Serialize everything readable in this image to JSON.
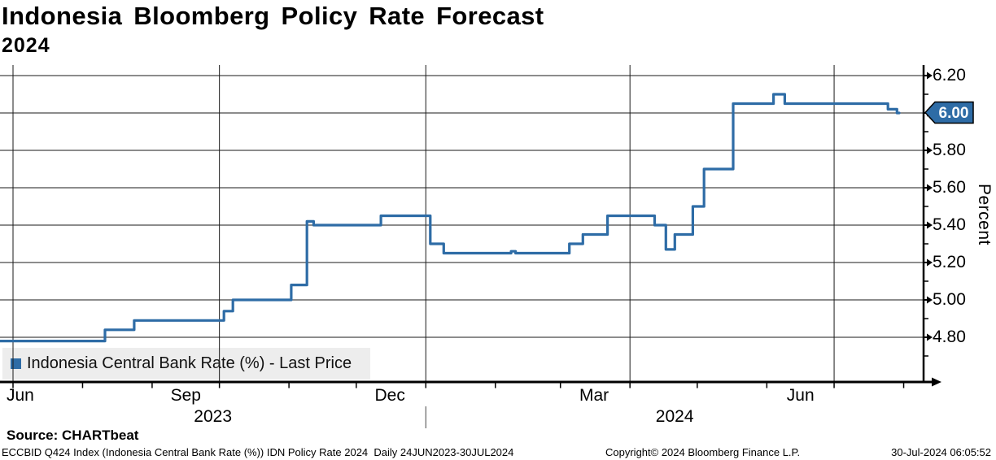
{
  "header": {
    "title": "Indonesia Bloomberg Policy Rate Forecast",
    "subtitle": "2024"
  },
  "legend": {
    "label": "Indonesia Central Bank Rate (%) - Last Price"
  },
  "source": {
    "label": "Source: CHARTbeat"
  },
  "footer": {
    "left": "ECCBID Q424 Index (Indonesia Central Bank Rate (%)) IDN Policy Rate 2024  Daily 24JUN2023-30JUL2024",
    "center": "Copyright© 2024 Bloomberg Finance L.P.",
    "right": "30-Jul-2024 06:05:52"
  },
  "last_price_tag": {
    "value": "6.00"
  },
  "axis": {
    "ylabel": "Percent",
    "yticks": [
      {
        "label": "6.20",
        "value": 6.2
      },
      {
        "label": "6.00",
        "value": 6.0,
        "tagged": true
      },
      {
        "label": "5.80",
        "value": 5.8
      },
      {
        "label": "5.60",
        "value": 5.6
      },
      {
        "label": "5.40",
        "value": 5.4
      },
      {
        "label": "5.20",
        "value": 5.2
      },
      {
        "label": "5.00",
        "value": 5.0
      },
      {
        "label": "4.80",
        "value": 4.8
      }
    ],
    "xticks": [
      {
        "label": "Jun",
        "center_date": "2023-06-16"
      },
      {
        "label": "Sep",
        "center_date": "2023-09-16"
      },
      {
        "label": "Dec",
        "center_date": "2023-12-16"
      },
      {
        "label": "Mar",
        "center_date": "2024-03-16"
      },
      {
        "label": "Jun",
        "center_date": "2024-06-16"
      }
    ],
    "years": [
      {
        "label": "2023"
      },
      {
        "label": "2024"
      }
    ]
  },
  "colors": {
    "line": "#2e6ca6",
    "tag_bg": "#2e6ca6",
    "tag_text": "#ffffff",
    "grid": "#1a1a1a",
    "axis": "#000000",
    "legend_bg": "#ededed"
  },
  "chart_data": {
    "type": "line",
    "step_style": "step-after",
    "title": "Indonesia Bloomberg Policy Rate Forecast 2024",
    "ylabel": "Percent",
    "ylim": [
      4.56,
      6.24
    ],
    "ytick_values": [
      4.8,
      5.0,
      5.2,
      5.4,
      5.6,
      5.8,
      6.0,
      6.2
    ],
    "minor_ytick_values": [
      4.7,
      4.9,
      5.1,
      5.3,
      5.5,
      5.7,
      5.9,
      6.1
    ],
    "x_range": [
      "2023-06-24",
      "2024-07-30"
    ],
    "grid": "horizontal every 0.20, vertical at quarter starts",
    "legend_position": "bottom-left",
    "quarter_gridline_dates": [
      "2023-07-01",
      "2023-10-01",
      "2024-01-01",
      "2024-04-01",
      "2024-07-01"
    ],
    "month_tick_dates": [
      "2023-07-01",
      "2023-08-01",
      "2023-09-01",
      "2023-10-01",
      "2023-11-01",
      "2023-12-01",
      "2024-01-01",
      "2024-02-01",
      "2024-03-01",
      "2024-04-01",
      "2024-05-01",
      "2024-06-01",
      "2024-07-01",
      "2024-08-01"
    ],
    "year_divider_date": "2024-01-01",
    "series": [
      {
        "name": "Indonesia Central Bank Rate (%) - Last Price",
        "color": "#2e6ca6",
        "last_price": 6.0,
        "steps": [
          [
            "2023-06-24",
            4.78
          ],
          [
            "2023-08-11",
            4.84
          ],
          [
            "2023-08-24",
            4.89
          ],
          [
            "2023-10-03",
            4.94
          ],
          [
            "2023-10-07",
            5.0
          ],
          [
            "2023-11-02",
            5.08
          ],
          [
            "2023-11-09",
            5.42
          ],
          [
            "2023-11-12",
            5.4
          ],
          [
            "2023-12-12",
            5.45
          ],
          [
            "2024-01-03",
            5.3
          ],
          [
            "2024-01-09",
            5.25
          ],
          [
            "2024-02-08",
            5.26
          ],
          [
            "2024-02-10",
            5.25
          ],
          [
            "2024-03-05",
            5.3
          ],
          [
            "2024-03-11",
            5.35
          ],
          [
            "2024-03-22",
            5.45
          ],
          [
            "2024-04-12",
            5.4
          ],
          [
            "2024-04-17",
            5.27
          ],
          [
            "2024-04-21",
            5.35
          ],
          [
            "2024-04-29",
            5.5
          ],
          [
            "2024-05-04",
            5.7
          ],
          [
            "2024-05-17",
            6.05
          ],
          [
            "2024-06-04",
            6.1
          ],
          [
            "2024-06-09",
            6.05
          ],
          [
            "2024-07-25",
            6.02
          ],
          [
            "2024-07-29",
            6.0
          ],
          [
            "2024-07-30",
            6.0
          ]
        ]
      }
    ]
  }
}
